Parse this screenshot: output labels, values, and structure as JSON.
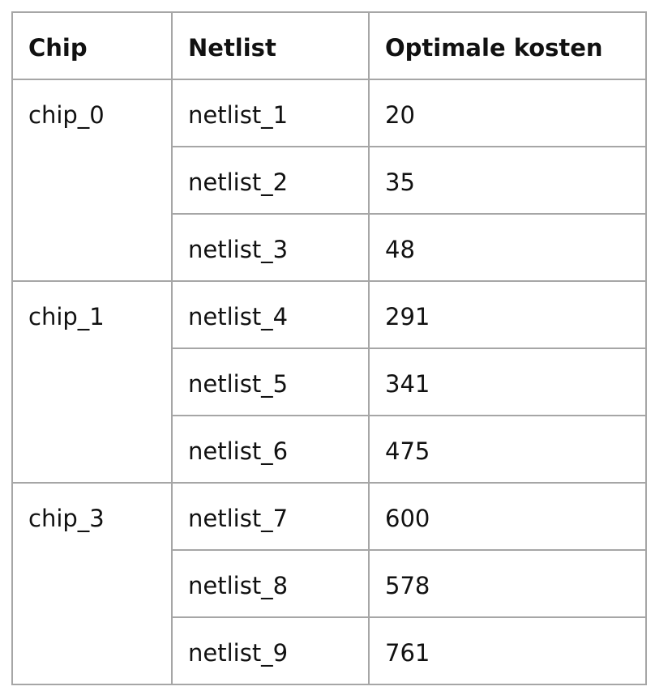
{
  "headers": {
    "chip": "Chip",
    "netlist": "Netlist",
    "cost": "Optimale kosten"
  },
  "groups": [
    {
      "chip": "chip_0",
      "rows": [
        {
          "netlist": "netlist_1",
          "cost": "20"
        },
        {
          "netlist": "netlist_2",
          "cost": "35"
        },
        {
          "netlist": "netlist_3",
          "cost": "48"
        }
      ]
    },
    {
      "chip": "chip_1",
      "rows": [
        {
          "netlist": "netlist_4",
          "cost": "291"
        },
        {
          "netlist": "netlist_5",
          "cost": "341"
        },
        {
          "netlist": "netlist_6",
          "cost": "475"
        }
      ]
    },
    {
      "chip": "chip_3",
      "rows": [
        {
          "netlist": "netlist_7",
          "cost": "600"
        },
        {
          "netlist": "netlist_8",
          "cost": "578"
        },
        {
          "netlist": "netlist_9",
          "cost": "761"
        }
      ]
    }
  ],
  "colors": {
    "border": "#a6a6a6",
    "text": "#111111",
    "text_muted": "#404040"
  }
}
